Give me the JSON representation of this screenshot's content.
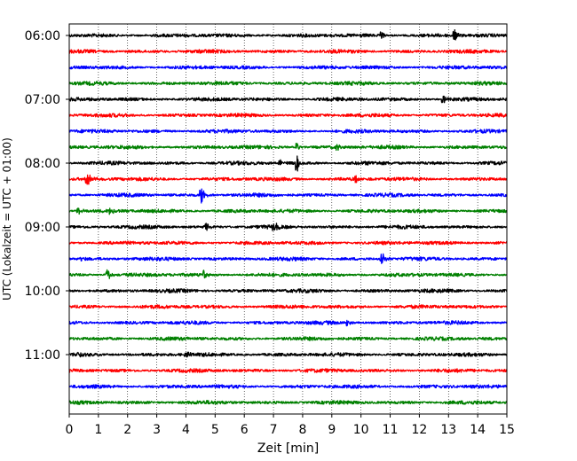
{
  "chart_data": {
    "type": "line",
    "title": "",
    "xlabel": "Zeit  [min]",
    "ylabel": "UTC (Lokalzeit = UTC + 01:00)",
    "xlim": [
      0,
      15
    ],
    "x_ticks": [
      0,
      1,
      2,
      3,
      4,
      5,
      6,
      7,
      8,
      9,
      10,
      11,
      12,
      13,
      14,
      15
    ],
    "x_tick_labels": [
      "0",
      "1",
      "2",
      "3",
      "4",
      "5",
      "6",
      "7",
      "8",
      "9",
      "10",
      "11",
      "12",
      "13",
      "14",
      "15"
    ],
    "x_grid": true,
    "y_grid": false,
    "trace_interval_min": 15,
    "first_trace_time": "06:00",
    "y_tick_labels": [
      "06:00",
      "07:00",
      "08:00",
      "09:00",
      "10:00",
      "11:00"
    ],
    "color_cycle": [
      "#000000",
      "#ff0000",
      "#0000ff",
      "#008000"
    ],
    "series": [
      {
        "start": "06:00",
        "color": "#000000",
        "events": [
          {
            "t": 10.7,
            "amp": 0.4
          },
          {
            "t": 13.2,
            "amp": 0.7
          }
        ]
      },
      {
        "start": "06:15",
        "color": "#ff0000",
        "events": []
      },
      {
        "start": "06:30",
        "color": "#0000ff",
        "events": []
      },
      {
        "start": "06:45",
        "color": "#008000",
        "events": []
      },
      {
        "start": "07:00",
        "color": "#000000",
        "events": [
          {
            "t": 12.8,
            "amp": 0.5
          }
        ]
      },
      {
        "start": "07:15",
        "color": "#ff0000",
        "events": []
      },
      {
        "start": "07:30",
        "color": "#0000ff",
        "events": []
      },
      {
        "start": "07:45",
        "color": "#008000",
        "events": [
          {
            "t": 7.8,
            "amp": 0.5
          },
          {
            "t": 9.2,
            "amp": 0.35
          }
        ]
      },
      {
        "start": "08:00",
        "color": "#000000",
        "events": [
          {
            "t": 7.8,
            "amp": 1.4
          },
          {
            "t": 7.2,
            "amp": 0.4
          }
        ]
      },
      {
        "start": "08:15",
        "color": "#ff0000",
        "events": [
          {
            "t": 0.6,
            "amp": 0.9
          },
          {
            "t": 9.8,
            "amp": 0.4
          }
        ]
      },
      {
        "start": "08:30",
        "color": "#0000ff",
        "events": [
          {
            "t": 4.5,
            "amp": 1.2
          }
        ]
      },
      {
        "start": "08:45",
        "color": "#008000",
        "events": [
          {
            "t": 0.3,
            "amp": 0.5
          },
          {
            "t": 1.4,
            "amp": 0.45
          }
        ]
      },
      {
        "start": "09:00",
        "color": "#000000",
        "events": [
          {
            "t": 7.0,
            "amp": 0.6
          },
          {
            "t": 4.7,
            "amp": 0.4
          }
        ]
      },
      {
        "start": "09:15",
        "color": "#ff0000",
        "events": []
      },
      {
        "start": "09:30",
        "color": "#0000ff",
        "events": [
          {
            "t": 10.7,
            "amp": 1.0
          },
          {
            "t": 0.4,
            "amp": 0.4
          }
        ]
      },
      {
        "start": "09:45",
        "color": "#008000",
        "events": [
          {
            "t": 1.3,
            "amp": 0.8
          },
          {
            "t": 4.6,
            "amp": 0.5
          }
        ]
      },
      {
        "start": "10:00",
        "color": "#000000",
        "events": []
      },
      {
        "start": "10:15",
        "color": "#ff0000",
        "events": []
      },
      {
        "start": "10:30",
        "color": "#0000ff",
        "events": [
          {
            "t": 9.5,
            "amp": 0.4
          }
        ]
      },
      {
        "start": "10:45",
        "color": "#008000",
        "events": []
      },
      {
        "start": "11:00",
        "color": "#000000",
        "events": [
          {
            "t": 4.0,
            "amp": 0.4
          },
          {
            "t": 0.3,
            "amp": 0.35
          }
        ]
      },
      {
        "start": "11:15",
        "color": "#ff0000",
        "events": []
      },
      {
        "start": "11:30",
        "color": "#0000ff",
        "events": []
      },
      {
        "start": "11:45",
        "color": "#008000",
        "events": []
      }
    ]
  }
}
